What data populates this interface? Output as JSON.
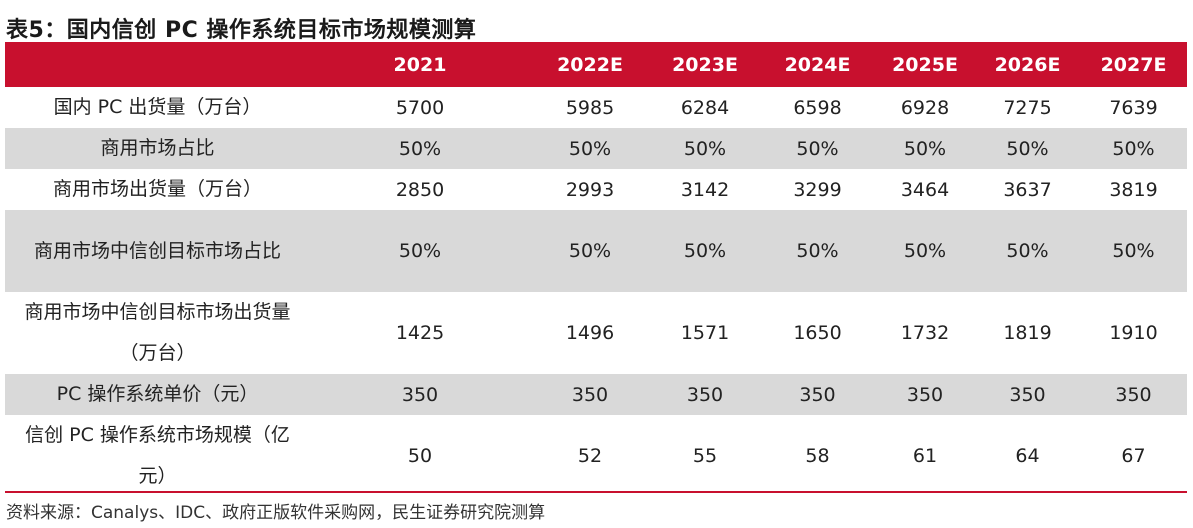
{
  "title": "表5：国内信创 PC 操作系统目标市场规模测算",
  "table": {
    "headers": [
      "",
      "2021",
      "2022E",
      "2023E",
      "2024E",
      "2025E",
      "2026E",
      "2027E"
    ],
    "rows": [
      {
        "label": "国内 PC 出货量（万台）",
        "values": [
          "5700",
          "5985",
          "6284",
          "6598",
          "6928",
          "7275",
          "7639"
        ]
      },
      {
        "label": "商用市场占比",
        "values": [
          "50%",
          "50%",
          "50%",
          "50%",
          "50%",
          "50%",
          "50%"
        ]
      },
      {
        "label": "商用市场出货量（万台）",
        "values": [
          "2850",
          "2993",
          "3142",
          "3299",
          "3464",
          "3637",
          "3819"
        ]
      },
      {
        "label": "商用市场中信创目标市场占比",
        "values": [
          "50%",
          "50%",
          "50%",
          "50%",
          "50%",
          "50%",
          "50%"
        ]
      },
      {
        "label": "商用市场中信创目标市场出货量（万台）",
        "values": [
          "1425",
          "1496",
          "1571",
          "1650",
          "1732",
          "1819",
          "1910"
        ]
      },
      {
        "label": "PC 操作系统单价（元）",
        "values": [
          "350",
          "350",
          "350",
          "350",
          "350",
          "350",
          "350"
        ]
      },
      {
        "label": "信创 PC 操作系统市场规模（亿元）",
        "values": [
          "50",
          "52",
          "55",
          "58",
          "61",
          "64",
          "67"
        ]
      }
    ]
  },
  "source": "资料来源：Canalys、IDC、政府正版软件采购网，民生证券研究院测算",
  "colors": {
    "header_bg": "#c8102e",
    "stripe_bg": "#d9d9d9",
    "header_text": "#ffffff"
  }
}
